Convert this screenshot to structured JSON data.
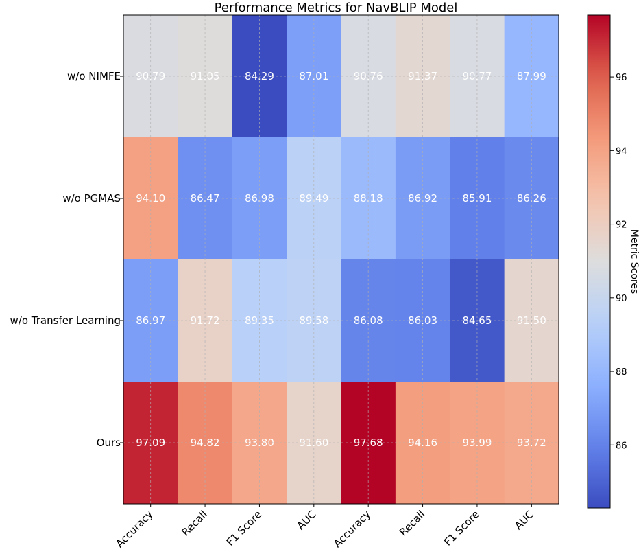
{
  "chart_data": {
    "type": "heatmap",
    "title": "Performance Metrics for NavBLIP Model",
    "rows": [
      "w/o NIMFE",
      "w/o PGMAS",
      "w/o Transfer Learning",
      "Ours"
    ],
    "columns": [
      "Accuracy",
      "Recall",
      "F1 Score",
      "AUC",
      "Accuracy",
      "Recall",
      "F1 Score",
      "AUC"
    ],
    "values": [
      [
        90.79,
        91.05,
        84.29,
        87.01,
        90.76,
        91.37,
        90.77,
        87.99
      ],
      [
        94.1,
        86.47,
        86.98,
        89.49,
        88.18,
        86.92,
        85.91,
        86.26
      ],
      [
        86.97,
        91.72,
        89.35,
        89.58,
        86.08,
        86.03,
        84.65,
        91.5
      ],
      [
        97.09,
        94.82,
        93.8,
        91.6,
        97.68,
        94.16,
        93.99,
        93.72
      ]
    ],
    "colormap": "coolwarm",
    "vmin": 84.29,
    "vmax": 97.68,
    "colorbar": {
      "label": "Metric Scores",
      "ticks": [
        "86",
        "88",
        "90",
        "92",
        "94",
        "96"
      ]
    },
    "grid": true
  }
}
